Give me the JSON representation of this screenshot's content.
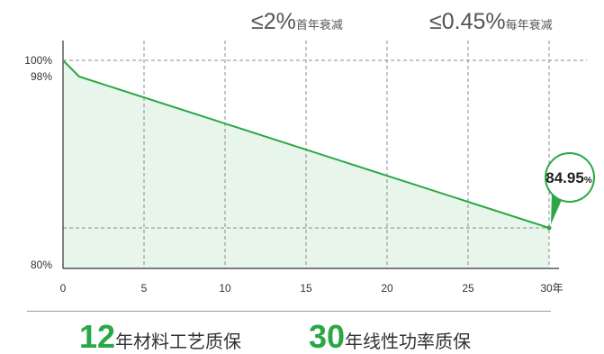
{
  "annotations": [
    {
      "value": "≤2%",
      "label": "首年衰减"
    },
    {
      "value": "≤0.45%",
      "label": "每年衰减"
    }
  ],
  "chart_data": {
    "type": "area",
    "x": [
      0,
      1,
      30
    ],
    "y": [
      100,
      98,
      84.95
    ],
    "xlim": [
      0,
      30
    ],
    "ylim": [
      80,
      100
    ],
    "x_tick_values": [
      0,
      5,
      10,
      15,
      20,
      25,
      30
    ],
    "x_ticks": [
      "0",
      "5",
      "10",
      "15",
      "20",
      "25",
      "30年"
    ],
    "y_tick_values": [
      100,
      98,
      80
    ],
    "y_ticks": [
      "100%",
      "98%",
      "80%"
    ],
    "grid": true,
    "callout": {
      "value": "84.95",
      "unit": "%"
    }
  },
  "colors": {
    "accent": "#2aa845",
    "fill": "#e7f5ea",
    "grid": "#8c8c8c",
    "axis": "#333333",
    "text": "#555555",
    "divider": "#9a9a9a"
  },
  "warranties": [
    {
      "years": "12",
      "label": "年材料工艺质保"
    },
    {
      "years": "30",
      "label": "年线性功率质保"
    }
  ]
}
